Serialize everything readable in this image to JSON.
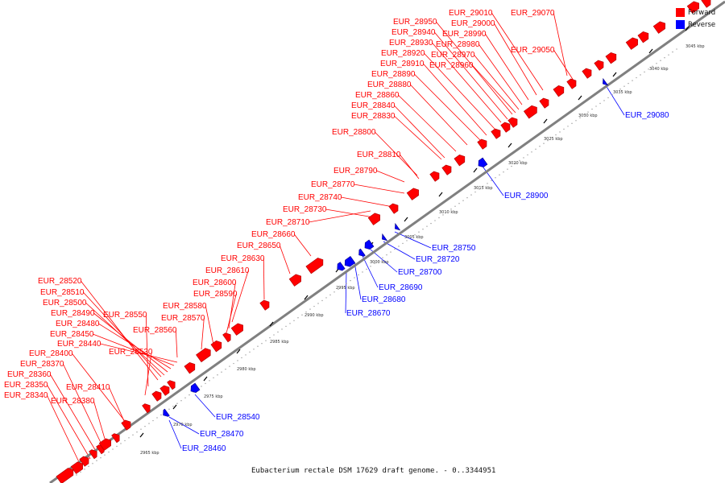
{
  "caption": "Eubacterium rectale DSM 17629 draft genome. - 0..3344951",
  "legend": [
    {
      "label": "Forward",
      "color": "#ff0000"
    },
    {
      "label": "Reverse",
      "color": "#0000ff"
    }
  ],
  "colors": {
    "forward": "#ff0000",
    "reverse": "#0000ff",
    "axis": "#808080"
  },
  "ticks": [
    "2965 kbp",
    "2970 kbp",
    "2975 kbp",
    "2980 kbp",
    "2985 kbp",
    "2990 kbp",
    "2995 kbp",
    "3000 kbp",
    "3005 kbp",
    "3010 kbp",
    "3015 kbp",
    "3020 kbp",
    "3025 kbp",
    "3030 kbp",
    "3035 kbp",
    "3040 kbp",
    "3045 kbp"
  ],
  "forward_genes": [
    "EUR_28520",
    "EUR_28510",
    "EUR_28500",
    "EUR_28490",
    "EUR_28480",
    "EUR_28450",
    "EUR_28440",
    "EUR_28400",
    "EUR_28370",
    "EUR_28360",
    "EUR_28350",
    "EUR_28340",
    "EUR_28410",
    "EUR_28380",
    "EUR_28550",
    "EUR_28530",
    "EUR_28560",
    "EUR_28570",
    "EUR_28580",
    "EUR_28590",
    "EUR_28600",
    "EUR_28610",
    "EUR_28630",
    "EUR_28650",
    "EUR_28660",
    "EUR_28710",
    "EUR_28730",
    "EUR_28740",
    "EUR_28770",
    "EUR_28790",
    "EUR_28810",
    "EUR_28800",
    "EUR_28830",
    "EUR_28840",
    "EUR_28860",
    "EUR_28880",
    "EUR_28890",
    "EUR_28910",
    "EUR_28920",
    "EUR_28930",
    "EUR_28940",
    "EUR_28950",
    "EUR_28960",
    "EUR_28970",
    "EUR_28980",
    "EUR_28990",
    "EUR_29000",
    "EUR_29010",
    "EUR_29050",
    "EUR_29070"
  ],
  "reverse_genes": [
    "EUR_29080",
    "EUR_28900",
    "EUR_28750",
    "EUR_28720",
    "EUR_28700",
    "EUR_28690",
    "EUR_28680",
    "EUR_28670",
    "EUR_28540",
    "EUR_28470",
    "EUR_28460"
  ]
}
